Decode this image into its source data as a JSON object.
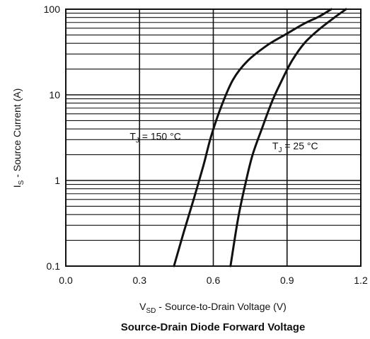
{
  "chart_data": {
    "type": "line",
    "title": "Source-Drain Diode Forward Voltage",
    "xlabel": {
      "main": "V",
      "sub": "SD",
      "rest": " - Source-to-Drain Voltage (V)"
    },
    "ylabel": {
      "main": "I",
      "sub": "S",
      "rest": " - Source Current (A)"
    },
    "xlim": [
      0.0,
      1.2
    ],
    "ylim": [
      0.1,
      100
    ],
    "y_scale": "log",
    "grid": true,
    "x_ticks": [
      "0.0",
      "0.3",
      "0.6",
      "0.9",
      "1.2"
    ],
    "y_ticks": [
      "0.1",
      "1",
      "10",
      "100"
    ],
    "series": [
      {
        "name": "TJ = 150 °C",
        "x": [
          0.44,
          0.48,
          0.52,
          0.56,
          0.59,
          0.63,
          0.68,
          0.74,
          0.82,
          0.9,
          0.97,
          1.03,
          1.08
        ],
        "y": [
          0.1,
          0.25,
          0.6,
          1.5,
          3.2,
          7.0,
          15,
          25,
          38,
          52,
          68,
          82,
          100
        ]
      },
      {
        "name": "TJ = 25 °C",
        "x": [
          0.67,
          0.7,
          0.73,
          0.76,
          0.8,
          0.84,
          0.88,
          0.92,
          0.97,
          1.03,
          1.09,
          1.14
        ],
        "y": [
          0.1,
          0.35,
          0.9,
          2.0,
          4.2,
          8.5,
          15,
          25,
          40,
          58,
          79,
          100
        ]
      }
    ],
    "annotations": [
      {
        "main": "T",
        "sub": "J",
        "rest": " = 150 °C",
        "x": 0.26,
        "y": 3.0
      },
      {
        "main": "T",
        "sub": "J",
        "rest": " = 25 °C",
        "x": 0.84,
        "y": 2.3
      }
    ]
  }
}
